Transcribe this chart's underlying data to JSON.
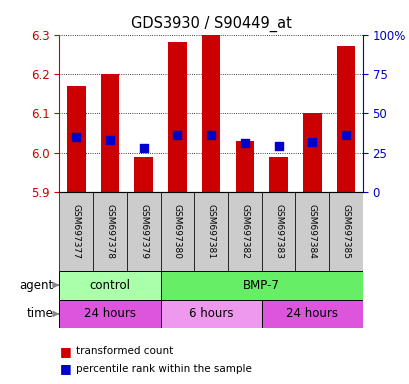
{
  "title": "GDS3930 / S90449_at",
  "samples": [
    "GSM697377",
    "GSM697378",
    "GSM697379",
    "GSM697380",
    "GSM697381",
    "GSM697382",
    "GSM697383",
    "GSM697384",
    "GSM697385"
  ],
  "bar_values": [
    6.17,
    6.2,
    5.99,
    6.28,
    6.3,
    6.03,
    5.99,
    6.1,
    6.27
  ],
  "percentile_values": [
    35,
    33,
    28,
    36,
    36,
    31,
    29,
    32,
    36
  ],
  "ylim": [
    5.9,
    6.3
  ],
  "yticks": [
    5.9,
    6.0,
    6.1,
    6.2,
    6.3
  ],
  "right_yticks": [
    0,
    25,
    50,
    75,
    100
  ],
  "right_yticklabels": [
    "0",
    "25",
    "50",
    "75",
    "100%"
  ],
  "bar_color": "#cc0000",
  "dot_color": "#0000cc",
  "bar_bottom": 5.9,
  "agent_groups": [
    {
      "label": "control",
      "start": 0,
      "end": 3,
      "color": "#aaffaa"
    },
    {
      "label": "BMP-7",
      "start": 3,
      "end": 9,
      "color": "#66ee66"
    }
  ],
  "time_groups": [
    {
      "label": "24 hours",
      "start": 0,
      "end": 3,
      "color": "#dd55dd"
    },
    {
      "label": "6 hours",
      "start": 3,
      "end": 6,
      "color": "#ee99ee"
    },
    {
      "label": "24 hours",
      "start": 6,
      "end": 9,
      "color": "#dd55dd"
    }
  ],
  "grid_color": "#000000",
  "label_color_left": "#cc0000",
  "label_color_right": "#0000cc",
  "dot_size": 28,
  "bar_width": 0.55,
  "sample_box_color": "#cccccc"
}
